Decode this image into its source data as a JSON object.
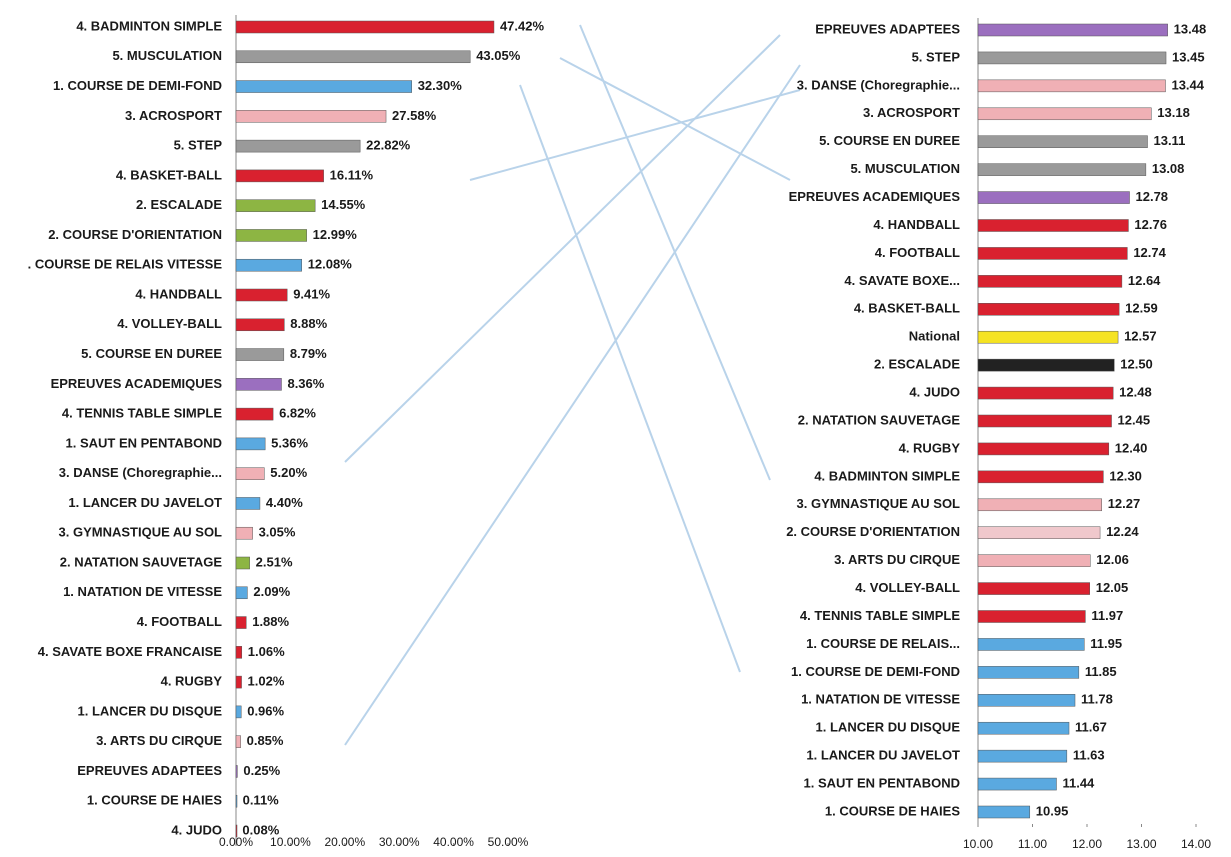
{
  "chart_data": [
    {
      "type": "bar",
      "orientation": "horizontal",
      "categories": [
        "4. BADMINTON SIMPLE",
        "5. MUSCULATION",
        "1. COURSE DE DEMI-FOND",
        "3. ACROSPORT",
        "5. STEP",
        "4. BASKET-BALL",
        "2. ESCALADE",
        "2. COURSE D'ORIENTATION",
        ". COURSE DE RELAIS VITESSE",
        "4. HANDBALL",
        "4. VOLLEY-BALL",
        "5. COURSE EN DUREE",
        "EPREUVES ACADEMIQUES",
        "4. TENNIS TABLE SIMPLE",
        "1. SAUT EN PENTABOND",
        "3. DANSE (Choregraphie...",
        "1. LANCER DU JAVELOT",
        "3. GYMNASTIQUE AU SOL",
        "2. NATATION SAUVETAGE",
        "1. NATATION DE VITESSE",
        "4. FOOTBALL",
        "4. SAVATE BOXE FRANCAISE",
        "4. RUGBY",
        "1. LANCER DU DISQUE",
        "3. ARTS DU CIRQUE",
        "EPREUVES ADAPTEES",
        "1. COURSE DE HAIES",
        "4. JUDO"
      ],
      "values": [
        47.42,
        43.05,
        32.3,
        27.58,
        22.82,
        16.11,
        14.55,
        12.99,
        12.08,
        9.41,
        8.88,
        8.79,
        8.36,
        6.82,
        5.36,
        5.2,
        4.4,
        3.05,
        2.51,
        2.09,
        1.88,
        1.06,
        1.02,
        0.96,
        0.85,
        0.25,
        0.11,
        0.08
      ],
      "value_labels": [
        "47.42%",
        "43.05%",
        "32.30%",
        "27.58%",
        "22.82%",
        "16.11%",
        "14.55%",
        "12.99%",
        "12.08%",
        "9.41%",
        "8.88%",
        "8.79%",
        "8.36%",
        "6.82%",
        "5.36%",
        "5.20%",
        "4.40%",
        "3.05%",
        "2.51%",
        "2.09%",
        "1.88%",
        "1.06%",
        "1.02%",
        "0.96%",
        "0.85%",
        "0.25%",
        "0.11%",
        "0.08%"
      ],
      "colors": [
        "#d9212f",
        "#9a9a9a",
        "#5aa9e0",
        "#f0b0b5",
        "#9a9a9a",
        "#d9212f",
        "#8db543",
        "#8db543",
        "#5aa9e0",
        "#d9212f",
        "#d9212f",
        "#9a9a9a",
        "#9b6fbf",
        "#d9212f",
        "#5aa9e0",
        "#f0b0b5",
        "#5aa9e0",
        "#f0b0b5",
        "#8db543",
        "#5aa9e0",
        "#d9212f",
        "#d9212f",
        "#d9212f",
        "#5aa9e0",
        "#f0b0b5",
        "#9b6fbf",
        "#5aa9e0",
        "#d9212f"
      ],
      "xlim": [
        0,
        50
      ],
      "xticks": [
        {
          "value": 0,
          "label": "0.00%"
        },
        {
          "value": 10,
          "label": "10.00%"
        },
        {
          "value": 20,
          "label": "20.00%"
        },
        {
          "value": 30,
          "label": "30.00%"
        },
        {
          "value": 40,
          "label": "40.00%"
        },
        {
          "value": 50,
          "label": "50.00%"
        }
      ]
    },
    {
      "type": "bar",
      "orientation": "horizontal",
      "categories": [
        "EPREUVES ADAPTEES",
        "5. STEP",
        "3. DANSE (Choregraphie...",
        "3. ACROSPORT",
        "5. COURSE EN DUREE",
        "5. MUSCULATION",
        "EPREUVES ACADEMIQUES",
        "4. HANDBALL",
        "4. FOOTBALL",
        "4. SAVATE BOXE...",
        "4. BASKET-BALL",
        "National",
        "2. ESCALADE",
        "4. JUDO",
        "2. NATATION SAUVETAGE",
        "4. RUGBY",
        "4. BADMINTON SIMPLE",
        "3. GYMNASTIQUE AU SOL",
        "2. COURSE D'ORIENTATION",
        "3. ARTS DU CIRQUE",
        "4. VOLLEY-BALL",
        "4. TENNIS TABLE SIMPLE",
        "1. COURSE DE RELAIS...",
        "1. COURSE DE DEMI-FOND",
        "1. NATATION DE VITESSE",
        "1. LANCER DU DISQUE",
        "1. LANCER DU JAVELOT",
        "1. SAUT EN PENTABOND",
        "1. COURSE DE HAIES"
      ],
      "values": [
        13.48,
        13.45,
        13.44,
        13.18,
        13.11,
        13.08,
        12.78,
        12.76,
        12.74,
        12.64,
        12.59,
        12.57,
        12.5,
        12.48,
        12.45,
        12.4,
        12.3,
        12.27,
        12.24,
        12.06,
        12.05,
        11.97,
        11.95,
        11.85,
        11.78,
        11.67,
        11.63,
        11.44,
        10.95
      ],
      "value_labels": [
        "13.48",
        "13.45",
        "13.44",
        "13.18",
        "13.11",
        "13.08",
        "12.78",
        "12.76",
        "12.74",
        "12.64",
        "12.59",
        "12.57",
        "12.50",
        "12.48",
        "12.45",
        "12.40",
        "12.30",
        "12.27",
        "12.24",
        "12.06",
        "12.05",
        "11.97",
        "11.95",
        "11.85",
        "11.78",
        "11.67",
        "11.63",
        "11.44",
        "10.95"
      ],
      "colors": [
        "#9b6fbf",
        "#9a9a9a",
        "#f0b0b5",
        "#f0b0b5",
        "#9a9a9a",
        "#9a9a9a",
        "#9b6fbf",
        "#d9212f",
        "#d9212f",
        "#d9212f",
        "#d9212f",
        "#f5e323",
        "#222222",
        "#d9212f",
        "#d9212f",
        "#d9212f",
        "#d9212f",
        "#f0b0b5",
        "#f0c8cc",
        "#f0b0b5",
        "#d9212f",
        "#d9212f",
        "#5aa9e0",
        "#5aa9e0",
        "#5aa9e0",
        "#5aa9e0",
        "#5aa9e0",
        "#5aa9e0",
        "#5aa9e0"
      ],
      "xlim": [
        10,
        14
      ],
      "xticks": [
        {
          "value": 10,
          "label": "10.00"
        },
        {
          "value": 11,
          "label": "11.00"
        },
        {
          "value": 12,
          "label": "12.00"
        },
        {
          "value": 13,
          "label": "13.00"
        },
        {
          "value": 14,
          "label": "14.00"
        }
      ]
    }
  ]
}
